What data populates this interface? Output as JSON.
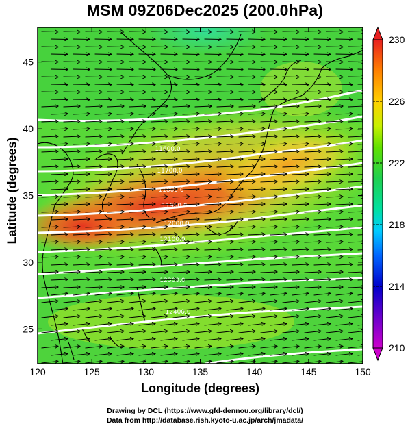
{
  "title": "MSM 09Z06Dec2025 (200.0hPa)",
  "x_axis": {
    "label": "Longitude (degrees)",
    "min": 120,
    "max": 150,
    "ticks": [
      120,
      125,
      130,
      135,
      140,
      145,
      150
    ]
  },
  "y_axis": {
    "label": "Latitude  (degrees)",
    "min": 22.4,
    "max": 47.6,
    "ticks": [
      25,
      30,
      35,
      40,
      45
    ]
  },
  "colorbar": {
    "min": 210,
    "max": 230,
    "tick_labels": [
      230,
      226,
      222,
      218,
      214,
      210
    ],
    "colors": [
      "#cc00cc",
      "#6a00cc",
      "#0000cc",
      "#0066ff",
      "#00ccff",
      "#00e0a0",
      "#20d050",
      "#60e000",
      "#c8f000",
      "#ffd000",
      "#ff8000",
      "#e82020"
    ]
  },
  "contours": [
    {
      "label": "11600.0"
    },
    {
      "label": "11700.0"
    },
    {
      "label": "11800.0"
    },
    {
      "label": "11900.0"
    },
    {
      "label": "12000.0"
    },
    {
      "label": "12100.0"
    },
    {
      "label": "12300.0"
    },
    {
      "label": "12400.0"
    }
  ],
  "credits": {
    "line1": "Drawing by DCL (https://www.gfd-dennou.org/library/dcl/)",
    "line2": "Data from http://database.rish.kyoto-u.ac.jp/arch/jmadata/"
  }
}
